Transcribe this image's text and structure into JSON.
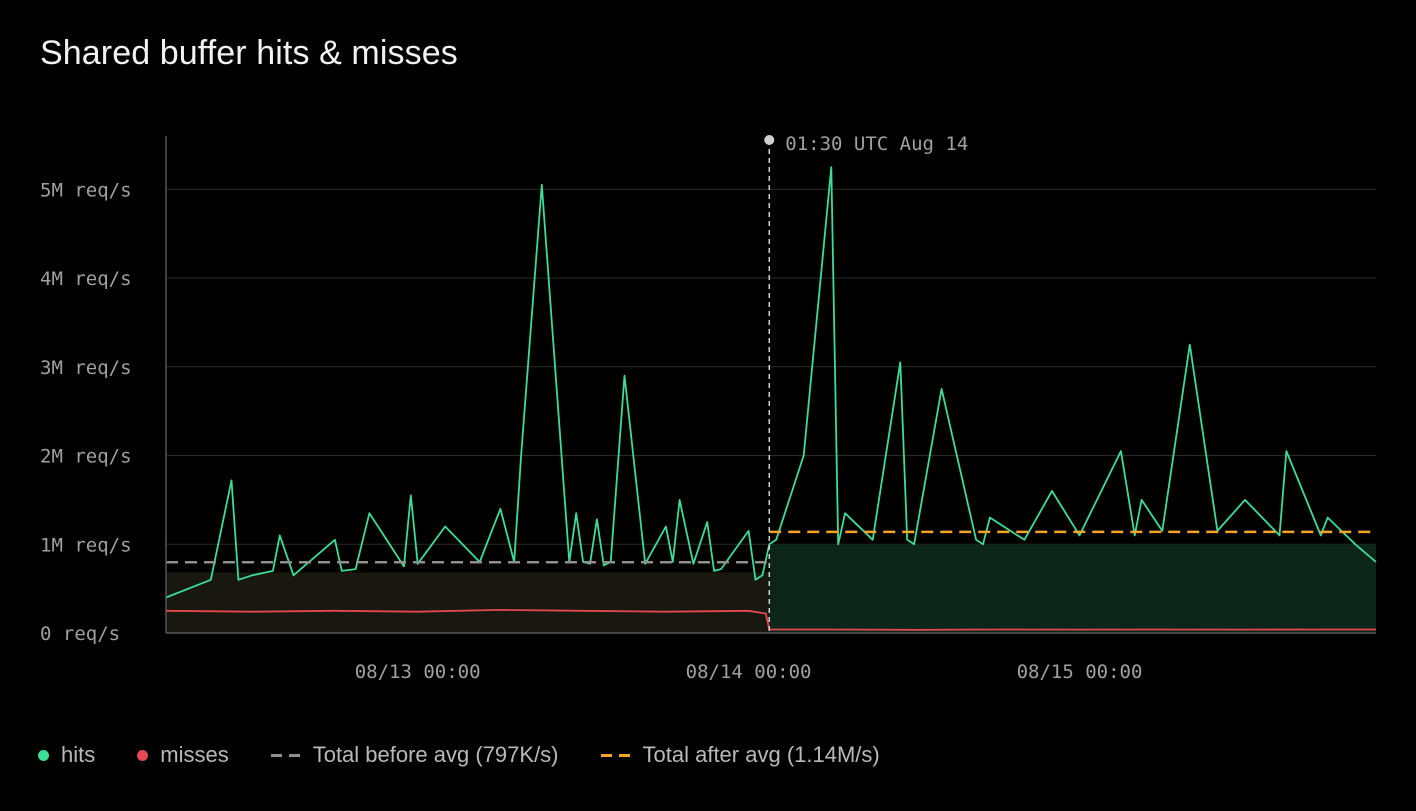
{
  "title": "Shared buffer hits & misses",
  "colors": {
    "hits": "#3ddc97",
    "misses": "#e5484d",
    "before_avg": "#8f8f8f",
    "after_avg": "#f5a524",
    "grid": "#2a2a2a",
    "axis": "#555555",
    "tick_text": "#a0a0a0",
    "marker": "#d0d0d0"
  },
  "legend": {
    "hits": "hits",
    "misses": "misses",
    "before": "Total before avg (797K/s)",
    "after": "Total after avg (1.14M/s)"
  },
  "chart_data": {
    "type": "line",
    "title": "Shared buffer hits & misses",
    "xlabel": "",
    "ylabel": "",
    "x_domain": [
      "08/12 05:45",
      "08/15 21:30"
    ],
    "ylim": [
      0,
      5600000
    ],
    "grid": true,
    "legend_placement": "bottom-left",
    "y_ticks": [
      {
        "value": 0,
        "label": "0 req/s"
      },
      {
        "value": 1000000,
        "label": "1M req/s"
      },
      {
        "value": 2000000,
        "label": "2M req/s"
      },
      {
        "value": 3000000,
        "label": "3M req/s"
      },
      {
        "value": 4000000,
        "label": "4M req/s"
      },
      {
        "value": 5000000,
        "label": "5M req/s"
      }
    ],
    "x_ticks": [
      {
        "value": "08/13 00:00",
        "label": "08/13 00:00"
      },
      {
        "value": "08/14 00:00",
        "label": "08/14 00:00"
      },
      {
        "value": "08/15 00:00",
        "label": "08/15 00:00"
      }
    ],
    "marker": {
      "x": "08/14 01:30",
      "label": "01:30 UTC Aug 14"
    },
    "series": [
      {
        "name": "hits",
        "x": [
          "08/12 05:45",
          "08/12 09:00",
          "08/12 10:30",
          "08/12 11:00",
          "08/12 12:00",
          "08/12 13:30",
          "08/12 14:00",
          "08/12 15:00",
          "08/12 18:00",
          "08/12 18:30",
          "08/12 19:30",
          "08/12 20:30",
          "08/12 23:00",
          "08/12 23:30",
          "08/13 00:00",
          "08/13 02:00",
          "08/13 04:30",
          "08/13 06:00",
          "08/13 07:00",
          "08/13 07:30",
          "08/13 09:00",
          "08/13 11:00",
          "08/13 11:30",
          "08/13 12:00",
          "08/13 12:30",
          "08/13 13:00",
          "08/13 13:30",
          "08/13 14:00",
          "08/13 15:00",
          "08/13 16:30",
          "08/13 18:00",
          "08/13 18:30",
          "08/13 19:00",
          "08/13 20:00",
          "08/13 21:00",
          "08/13 21:30",
          "08/13 22:00",
          "08/14 00:00",
          "08/14 00:30",
          "08/14 01:00",
          "08/14 01:30",
          "08/14 02:00",
          "08/14 04:00",
          "08/14 06:00",
          "08/14 06:30",
          "08/14 07:00",
          "08/14 09:00",
          "08/14 11:00",
          "08/14 11:30",
          "08/14 12:00",
          "08/14 14:00",
          "08/14 16:30",
          "08/14 17:00",
          "08/14 17:30",
          "08/14 20:00",
          "08/14 22:00",
          "08/15 00:00",
          "08/15 03:00",
          "08/15 04:00",
          "08/15 04:30",
          "08/15 06:00",
          "08/15 08:00",
          "08/15 10:00",
          "08/15 12:00",
          "08/15 14:30",
          "08/15 15:00",
          "08/15 17:30",
          "08/15 18:00",
          "08/15 20:00",
          "08/15 21:30"
        ],
        "values": [
          400000,
          600000,
          1720000,
          600000,
          650000,
          700000,
          1100000,
          650000,
          1050000,
          700000,
          720000,
          1350000,
          750000,
          1550000,
          780000,
          1200000,
          800000,
          1400000,
          800000,
          2000000,
          5050000,
          800000,
          1350000,
          800000,
          780000,
          1280000,
          760000,
          800000,
          2900000,
          780000,
          1200000,
          800000,
          1500000,
          780000,
          1250000,
          700000,
          720000,
          1150000,
          600000,
          650000,
          1000000,
          1050000,
          2000000,
          5250000,
          1000000,
          1350000,
          1050000,
          3050000,
          1050000,
          1000000,
          2750000,
          1050000,
          1000000,
          1300000,
          1050000,
          1600000,
          1100000,
          2050000,
          1100000,
          1500000,
          1150000,
          3250000,
          1150000,
          1500000,
          1100000,
          2050000,
          1100000,
          1300000,
          1000000,
          800000
        ]
      },
      {
        "name": "misses",
        "x": [
          "08/12 05:45",
          "08/12 12:00",
          "08/12 18:00",
          "08/13 00:00",
          "08/13 06:00",
          "08/13 12:00",
          "08/13 18:00",
          "08/14 00:00",
          "08/14 01:15",
          "08/14 01:30",
          "08/14 06:00",
          "08/14 12:00",
          "08/14 18:00",
          "08/15 00:00",
          "08/15 06:00",
          "08/15 12:00",
          "08/15 18:00",
          "08/15 21:30"
        ],
        "values": [
          250000,
          240000,
          250000,
          240000,
          260000,
          250000,
          240000,
          250000,
          220000,
          40000,
          40000,
          35000,
          40000,
          38000,
          40000,
          38000,
          40000,
          40000
        ]
      }
    ],
    "reference_lines": [
      {
        "name": "Total before avg (797K/s)",
        "value": 797000,
        "x_range": [
          "08/12 05:45",
          "08/14 01:30"
        ],
        "style": "dashed"
      },
      {
        "name": "Total after avg (1.14M/s)",
        "value": 1140000,
        "x_range": [
          "08/14 01:30",
          "08/15 21:30"
        ],
        "style": "dashed"
      }
    ]
  }
}
